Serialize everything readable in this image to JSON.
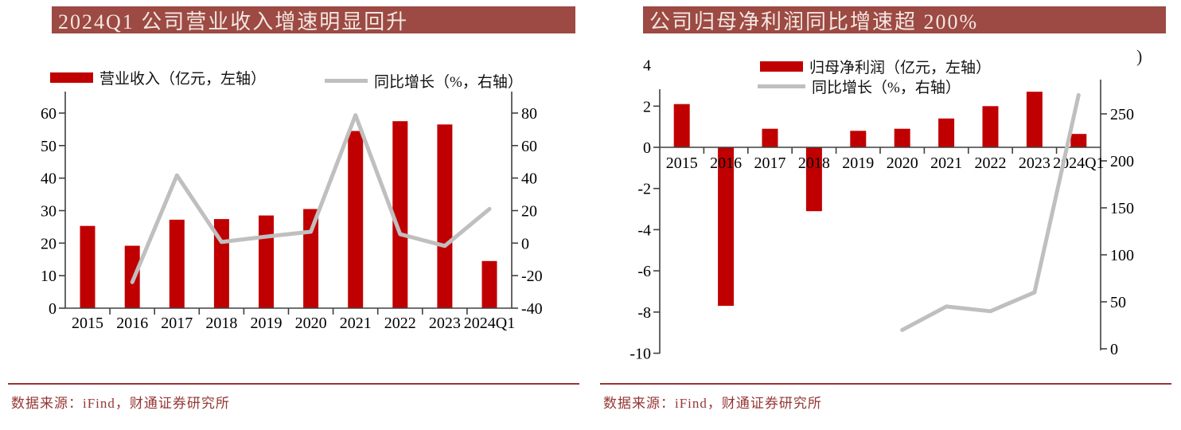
{
  "page": {
    "background": "#ffffff"
  },
  "colors": {
    "bar": "#c00000",
    "line": "#bfbfbf",
    "title_bg": "#9c4a43",
    "title_text": "#f3e7e2",
    "source_text": "#953735",
    "rule": "#953735",
    "axis_line": "#404040",
    "axis_text": "#000000"
  },
  "figures": [
    {
      "title": "2024Q1 公司营业收入增速明显回升",
      "legend": [
        {
          "swatch": "bar",
          "label": "营业收入（亿元，左轴）"
        },
        {
          "swatch": "line",
          "label": "同比增长（%，右轴）"
        }
      ],
      "source_note": "数据来源：iFind，财通证券研究所",
      "chart_data": {
        "type": "bar+line",
        "title": "2024Q1 公司营业收入增速明显回升",
        "categories": [
          "2015",
          "2016",
          "2017",
          "2018",
          "2019",
          "2020",
          "2021",
          "2022",
          "2023",
          "2024Q1"
        ],
        "series": [
          {
            "name": "营业收入（亿元，左轴）",
            "type": "bar",
            "axis": "left",
            "values": [
              25.3,
              19.2,
              27.2,
              27.4,
              28.5,
              30.5,
              54.5,
              57.5,
              56.5,
              14.5
            ]
          },
          {
            "name": "同比增长（%，右轴）",
            "type": "line",
            "axis": "right",
            "values": [
              null,
              -24,
              41.7,
              0.7,
              4,
              7,
              78.7,
              5.5,
              -1.7,
              21
            ]
          }
        ],
        "left_axis": {
          "ticks": [
            60,
            50,
            40,
            30,
            20,
            10,
            0
          ],
          "range": [
            0,
            66
          ]
        },
        "right_axis": {
          "ticks": [
            80,
            60,
            40,
            20,
            0,
            -20,
            -40
          ],
          "range": [
            -40,
            90
          ]
        },
        "grid": false,
        "legend_position": "top"
      }
    },
    {
      "title": "公司归母净利润同比增速超 200%",
      "legend": [
        {
          "swatch": "bar",
          "label": "归母净利润（亿元，左轴）"
        },
        {
          "swatch": "line",
          "label": "同比增长（%，右轴）"
        }
      ],
      "stray_text": ")",
      "source_note": "数据来源：iFind，财通证券研究所",
      "chart_data": {
        "type": "bar+line",
        "title": "公司归母净利润同比增速超 200%",
        "categories": [
          "2015",
          "2016",
          "2017",
          "2018",
          "2019",
          "2020",
          "2021",
          "2022",
          "2023",
          "2024Q1"
        ],
        "series": [
          {
            "name": "归母净利润（亿元，左轴）",
            "type": "bar",
            "axis": "left",
            "values": [
              2.1,
              -7.7,
              0.9,
              -3.1,
              0.8,
              0.9,
              1.4,
              2.0,
              2.7,
              0.65
            ]
          },
          {
            "name": "同比增长（%，右轴）",
            "type": "line",
            "axis": "right",
            "values": [
              null,
              null,
              null,
              null,
              null,
              20,
              45,
              40,
              60,
              270
            ]
          }
        ],
        "left_axis": {
          "ticks": [
            4,
            2,
            0,
            -2,
            -4,
            -6,
            -8,
            -10
          ],
          "range": [
            -10,
            4.5
          ]
        },
        "right_axis": {
          "ticks": [
            250,
            200,
            150,
            100,
            50,
            0
          ],
          "range": [
            0,
            285
          ]
        },
        "grid": false,
        "legend_position": "top"
      }
    }
  ]
}
